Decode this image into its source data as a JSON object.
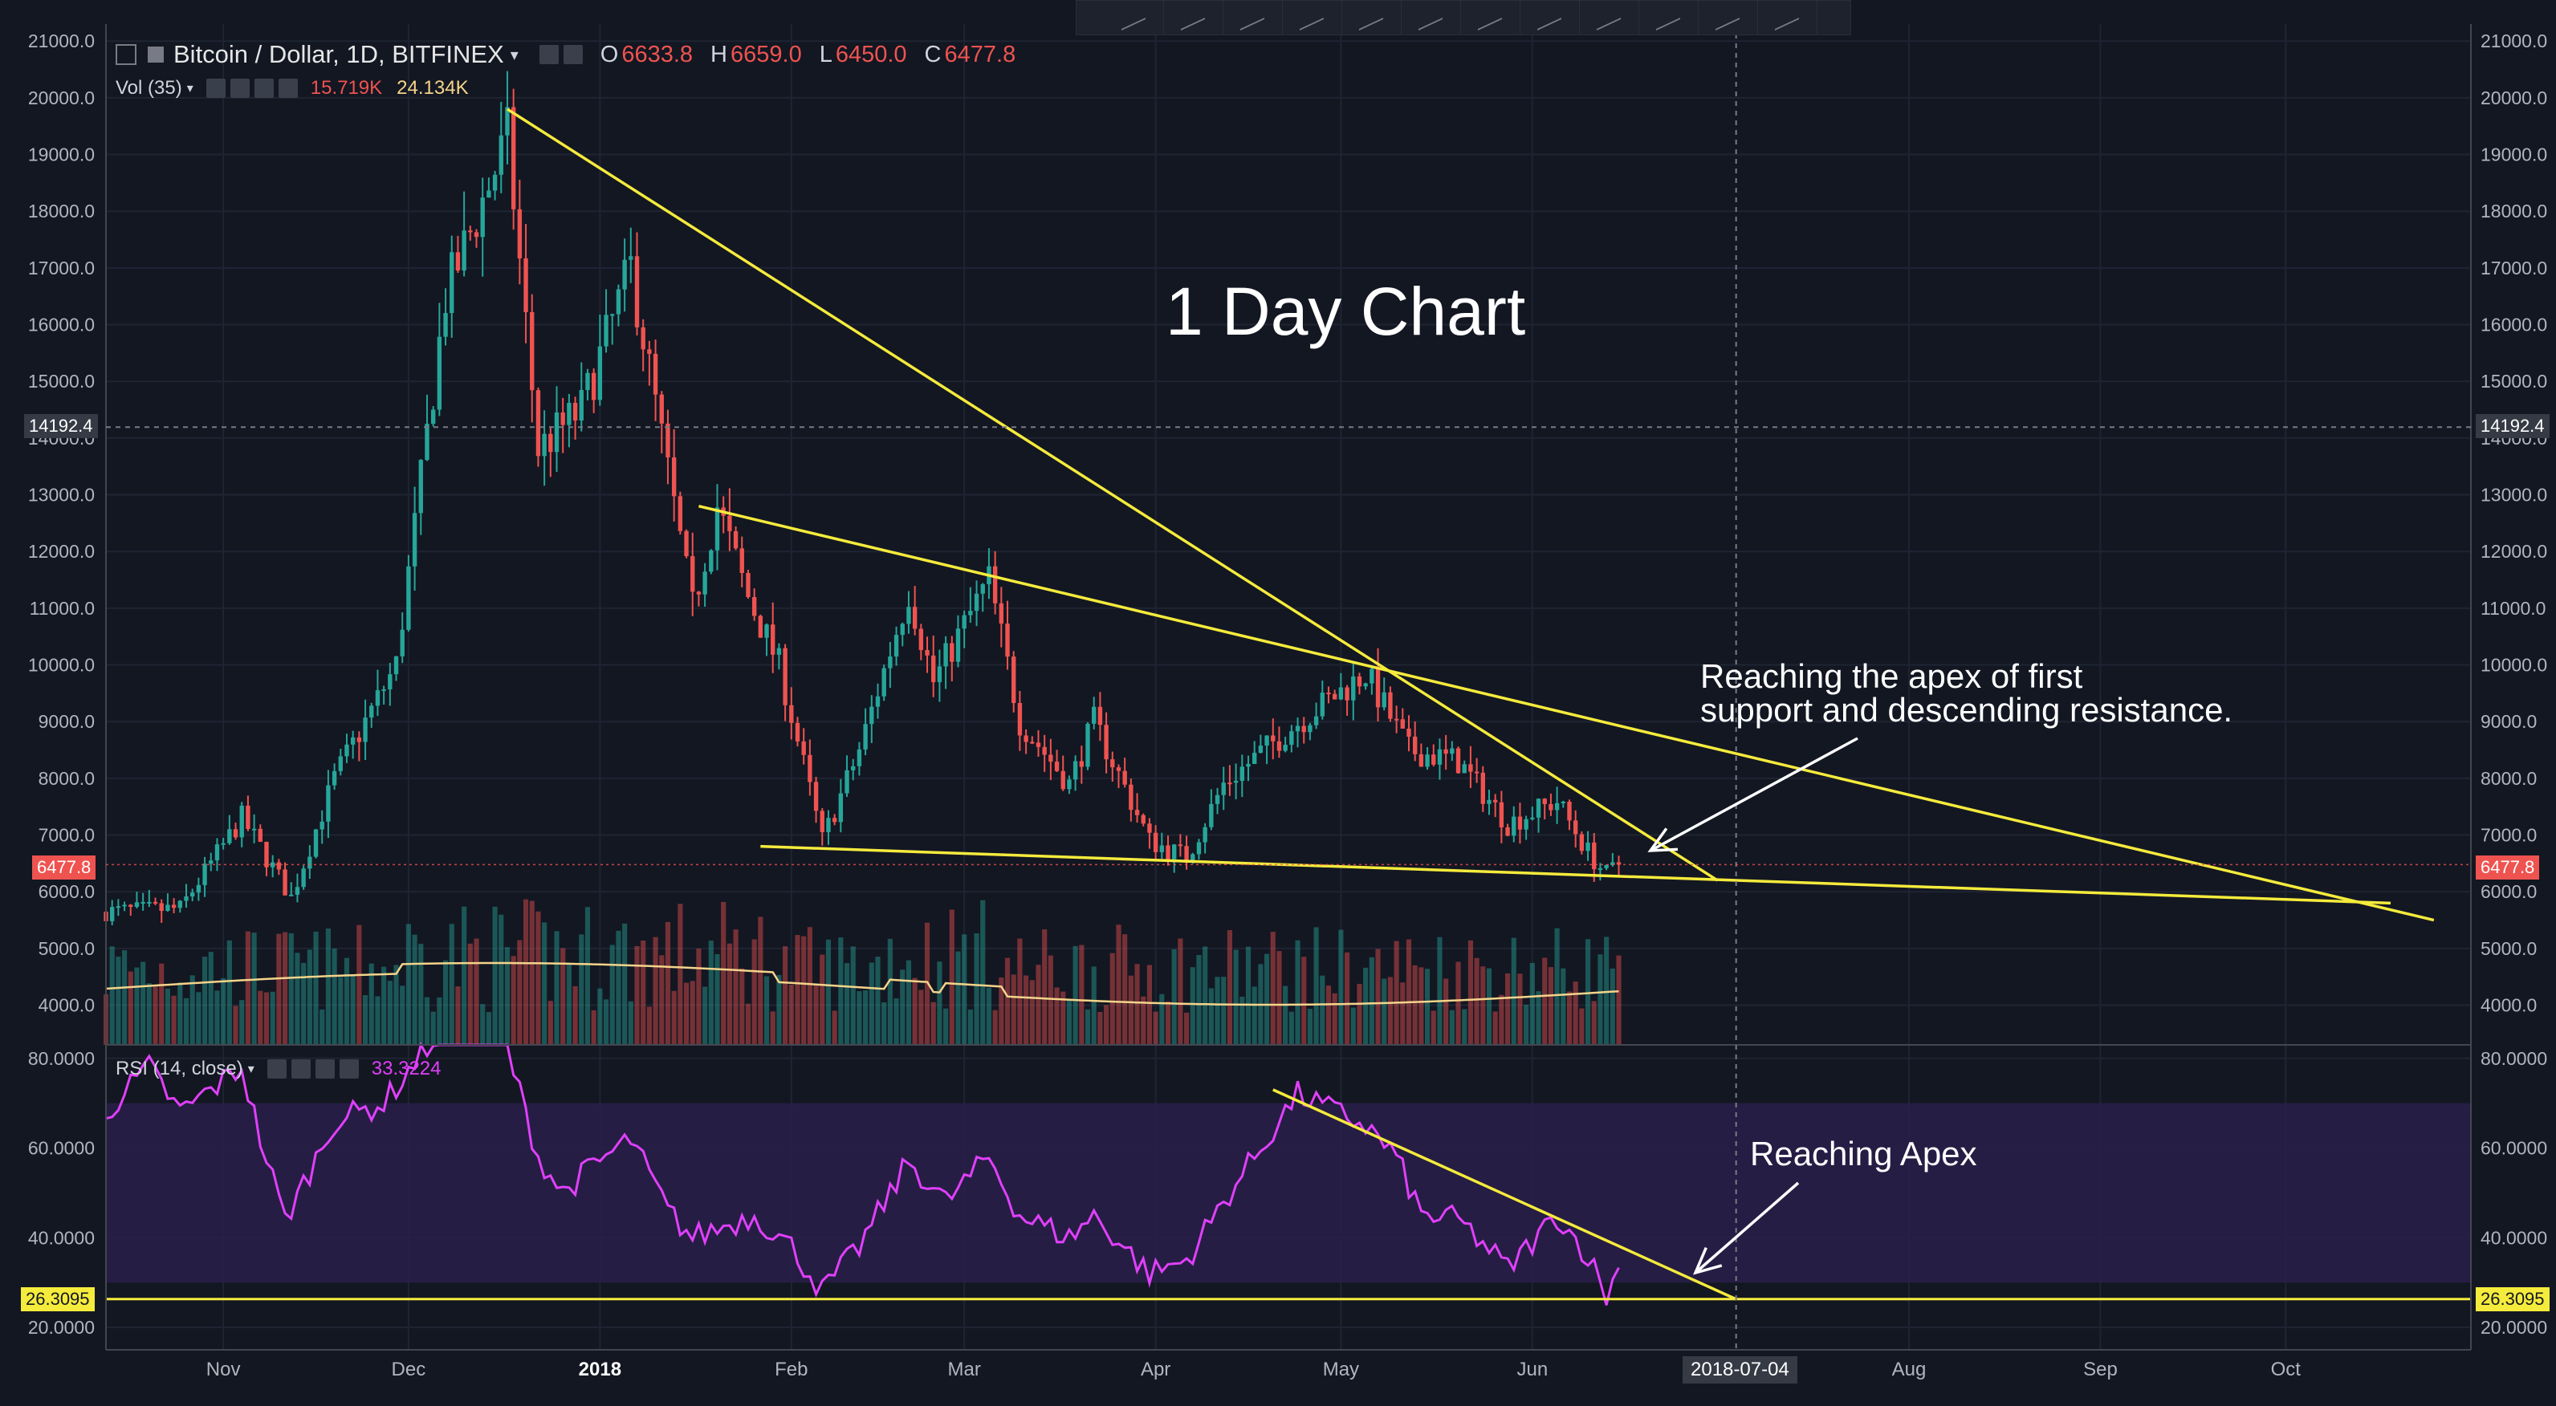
{
  "header": {
    "symbol": "Bitcoin / Dollar, 1D, BITFINEX",
    "o_label": "O",
    "o_value": "6633.8",
    "h_label": "H",
    "h_value": "6659.0",
    "l_label": "L",
    "l_value": "6450.0",
    "c_label": "C",
    "c_value": "6477.8",
    "vol_label": "Vol (35)",
    "vol_value1": "15.719K",
    "vol_value2": "24.134K",
    "rsi_label": "RSI (14, close)",
    "rsi_value": "33.3224"
  },
  "annotations": {
    "title": "1 Day Chart",
    "apex_text_line1": "Reaching the apex of first",
    "apex_text_line2": "support and descending resistance.",
    "rsi_apex_text": "Reaching Apex"
  },
  "price_badges": {
    "crosshair": "14192.4",
    "last": "6477.8",
    "rsi_level": "26.3095"
  },
  "crosshair_date": "2018-07-04",
  "colors": {
    "background": "#131722",
    "up": "#26a69a",
    "down": "#ef5350",
    "trendline": "#f5eb3c",
    "rsi": "#e040fb",
    "rsi_band": "#2a1f4a",
    "volume_ma": "#f5d48a"
  },
  "chart_data": [
    {
      "type": "candlestick",
      "title": "Bitcoin / Dollar, 1D, BITFINEX",
      "ylim": [
        3300,
        21300
      ],
      "y_ticks": [
        4000,
        5000,
        6000,
        7000,
        8000,
        9000,
        10000,
        11000,
        12000,
        13000,
        14000,
        15000,
        16000,
        17000,
        18000,
        19000,
        20000,
        21000
      ],
      "x_ticks": [
        "Nov",
        "Dec",
        "2018",
        "Feb",
        "Mar",
        "Apr",
        "May",
        "Jun",
        "Aug",
        "Sep",
        "Oct"
      ],
      "x_tick_dates": [
        "2017-11-01",
        "2017-12-01",
        "2018-01-01",
        "2018-02-01",
        "2018-03-01",
        "2018-04-01",
        "2018-05-01",
        "2018-06-01",
        "2018-08-01",
        "2018-09-01",
        "2018-10-01"
      ],
      "xlim": [
        "2017-10-13",
        "2018-10-31"
      ],
      "close_anchors": [
        [
          "2017-10-13",
          5650
        ],
        [
          "2017-10-25",
          5700
        ],
        [
          "2017-11-04",
          7300
        ],
        [
          "2017-11-12",
          5900
        ],
        [
          "2017-11-19",
          8000
        ],
        [
          "2017-11-29",
          10000
        ],
        [
          "2017-12-07",
          16500
        ],
        [
          "2017-12-17",
          19300
        ],
        [
          "2017-12-22",
          13800
        ],
        [
          "2017-12-29",
          14500
        ],
        [
          "2018-01-06",
          17000
        ],
        [
          "2018-01-16",
          11000
        ],
        [
          "2018-01-20",
          12800
        ],
        [
          "2018-01-25",
          11200
        ],
        [
          "2018-01-30",
          10000
        ],
        [
          "2018-02-06",
          6900
        ],
        [
          "2018-02-12",
          8500
        ],
        [
          "2018-02-20",
          11300
        ],
        [
          "2018-02-24",
          9700
        ],
        [
          "2018-03-05",
          11500
        ],
        [
          "2018-03-10",
          9000
        ],
        [
          "2018-03-18",
          7900
        ],
        [
          "2018-03-22",
          9000
        ],
        [
          "2018-03-31",
          6900
        ],
        [
          "2018-04-06",
          6600
        ],
        [
          "2018-04-12",
          7900
        ],
        [
          "2018-04-23",
          8900
        ],
        [
          "2018-05-05",
          9850
        ],
        [
          "2018-05-12",
          8500
        ],
        [
          "2018-05-20",
          8300
        ],
        [
          "2018-05-28",
          7200
        ],
        [
          "2018-06-05",
          7600
        ],
        [
          "2018-06-10",
          6700
        ],
        [
          "2018-06-13",
          6300
        ],
        [
          "2018-06-15",
          6478
        ]
      ],
      "volume": {
        "label": "Vol (35)",
        "ma_value": "24.134K",
        "value": "15.719K"
      },
      "trendlines": [
        {
          "from": [
            "2017-12-17",
            19800
          ],
          "to": [
            "2018-07-01",
            6200
          ]
        },
        {
          "from": [
            "2018-01-17",
            12800
          ],
          "to": [
            "2018-10-25",
            5500
          ]
        },
        {
          "from": [
            "2018-01-27",
            6800
          ],
          "to": [
            "2018-10-18",
            5800
          ]
        }
      ]
    },
    {
      "type": "line",
      "title": "RSI (14, close)",
      "ylim": [
        15,
        83
      ],
      "y_ticks": [
        20,
        40,
        60,
        80
      ],
      "band": [
        30,
        70
      ],
      "last_value": 33.3224,
      "horizontal_level": 26.3095,
      "anchors": [
        [
          "2017-10-13",
          68
        ],
        [
          "2017-10-20",
          78
        ],
        [
          "2017-10-25",
          68
        ],
        [
          "2017-10-30",
          73
        ],
        [
          "2017-11-04",
          78
        ],
        [
          "2017-11-07",
          62
        ],
        [
          "2017-11-11",
          44
        ],
        [
          "2017-11-14",
          52
        ],
        [
          "2017-11-19",
          66
        ],
        [
          "2017-11-27",
          70
        ],
        [
          "2017-12-07",
          88
        ],
        [
          "2017-12-17",
          82
        ],
        [
          "2017-12-22",
          58
        ],
        [
          "2017-12-26",
          50
        ],
        [
          "2017-12-30",
          55
        ],
        [
          "2018-01-06",
          62
        ],
        [
          "2018-01-12",
          46
        ],
        [
          "2018-01-16",
          40
        ],
        [
          "2018-01-20",
          42
        ],
        [
          "2018-01-26",
          45
        ],
        [
          "2018-02-01",
          38
        ],
        [
          "2018-02-06",
          28
        ],
        [
          "2018-02-12",
          38
        ],
        [
          "2018-02-20",
          57
        ],
        [
          "2018-02-26",
          48
        ],
        [
          "2018-03-05",
          58
        ],
        [
          "2018-03-10",
          45
        ],
        [
          "2018-03-18",
          40
        ],
        [
          "2018-03-22",
          45
        ],
        [
          "2018-03-31",
          32
        ],
        [
          "2018-04-06",
          35
        ],
        [
          "2018-04-12",
          48
        ],
        [
          "2018-04-22",
          68
        ],
        [
          "2018-04-24",
          72
        ],
        [
          "2018-05-05",
          65
        ],
        [
          "2018-05-10",
          58
        ],
        [
          "2018-05-14",
          45
        ],
        [
          "2018-05-20",
          44
        ],
        [
          "2018-05-26",
          36
        ],
        [
          "2018-05-28",
          33
        ],
        [
          "2018-06-05",
          45
        ],
        [
          "2018-06-10",
          36
        ],
        [
          "2018-06-13",
          27
        ],
        [
          "2018-06-15",
          33.3
        ]
      ],
      "trendline": {
        "from": [
          "2018-04-20",
          73
        ],
        "to": [
          "2018-07-04",
          26.3
        ]
      }
    }
  ]
}
